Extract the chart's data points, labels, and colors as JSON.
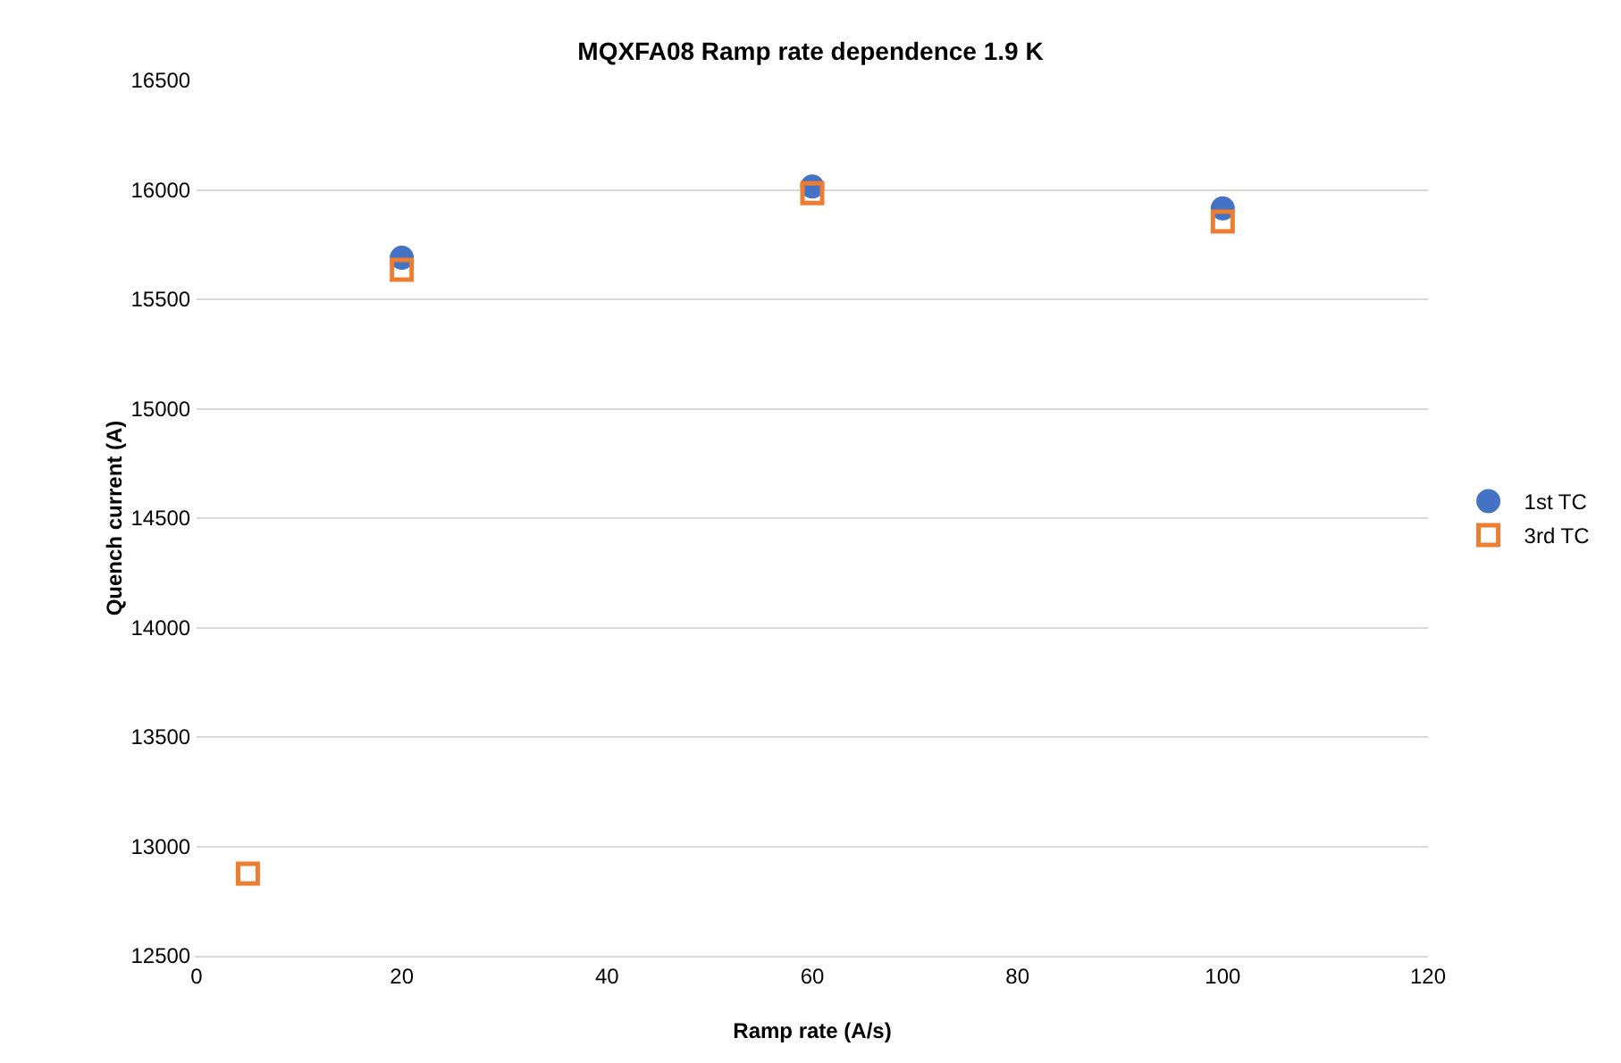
{
  "chart_data": {
    "type": "scatter",
    "title": "MQXFA08 Ramp rate dependence 1.9 K",
    "xlabel": "Ramp rate (A/s)",
    "ylabel": "Quench current (A)",
    "series": [
      {
        "name": "1st TC",
        "color": "#4472c4",
        "marker": "circle",
        "x": [
          20,
          60,
          100
        ],
        "values": [
          15690,
          16015,
          15915
        ]
      },
      {
        "name": "3rd TC",
        "color": "#ed7d31",
        "marker": "square",
        "x": [
          5,
          20,
          60,
          100
        ],
        "values": [
          12875,
          15635,
          15985,
          15855
        ]
      }
    ],
    "xlim": [
      0,
      120
    ],
    "xticks": [
      0,
      20,
      40,
      60,
      80,
      100,
      120
    ],
    "ylim": [
      12500,
      16500
    ],
    "yticks": [
      12500,
      13000,
      13500,
      14000,
      14500,
      15000,
      15500,
      16000,
      16500
    ],
    "grid": "y",
    "legend": "right"
  }
}
